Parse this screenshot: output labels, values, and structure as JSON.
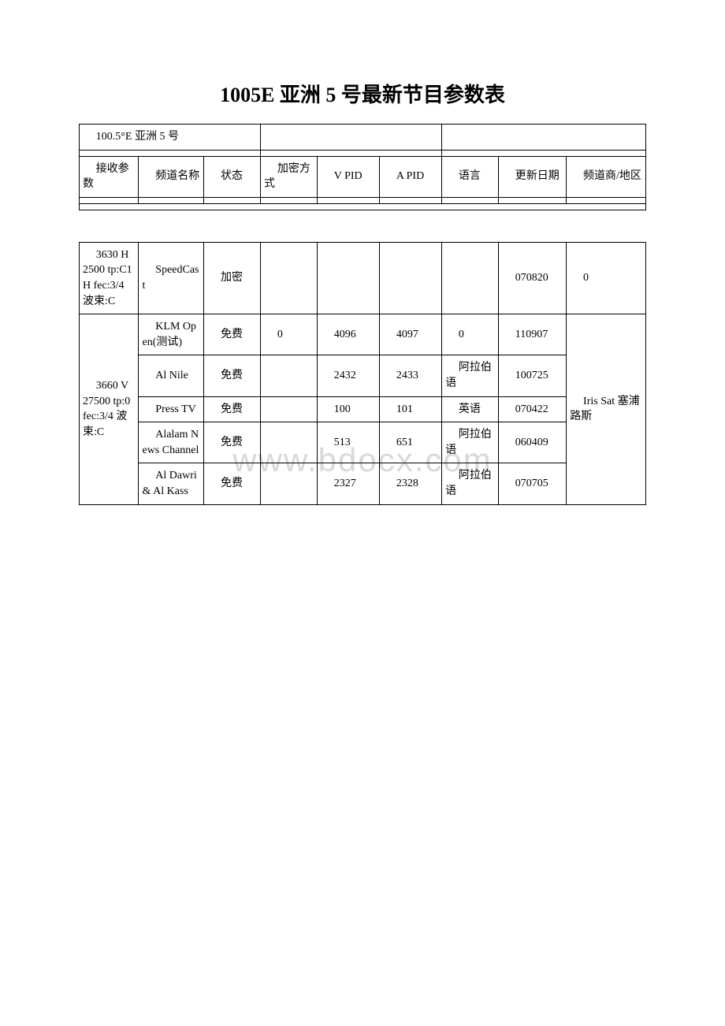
{
  "title": "1005E 亚洲 5 号最新节目参数表",
  "watermark": "www.bdocx.com",
  "header_table": {
    "sat_name": "100.5°E 亚洲 5 号",
    "columns": [
      "接收参数",
      "频道名称",
      "状态",
      "加密方式",
      "V PID",
      "A PID",
      "语言",
      "更新日期",
      "频道商/地区"
    ]
  },
  "groups": [
    {
      "recv": "3630 H 2500 tp:C1H fec:3/4 波束:C",
      "provider": "0",
      "rows": [
        {
          "name": "SpeedCast",
          "status": "加密",
          "enc": "",
          "vpid": "",
          "apid": "",
          "lang": "",
          "date": "070820"
        }
      ]
    },
    {
      "recv": "3660 V 27500 tp:0 fec:3/4 波束:C",
      "provider": "Iris Sat 塞浦路斯",
      "rows": [
        {
          "name": "KLM Open(测试)",
          "status": "免费",
          "enc": "0",
          "vpid": "4096",
          "apid": "4097",
          "lang": "0",
          "date": "110907"
        },
        {
          "name": "Al Nile",
          "status": "免费",
          "enc": "",
          "vpid": "2432",
          "apid": "2433",
          "lang": "阿拉伯语",
          "date": "100725"
        },
        {
          "name": "Press TV",
          "status": "免费",
          "enc": "",
          "vpid": "100",
          "apid": "101",
          "lang": "英语",
          "date": "070422"
        },
        {
          "name": "Alalam News Channel",
          "status": "免费",
          "enc": "",
          "vpid": "513",
          "apid": "651",
          "lang": "阿拉伯语",
          "date": "060409"
        },
        {
          "name": "Al Dawri & Al Kass",
          "status": "免费",
          "enc": "",
          "vpid": "2327",
          "apid": "2328",
          "lang": "阿拉伯语",
          "date": "070705"
        }
      ]
    }
  ]
}
